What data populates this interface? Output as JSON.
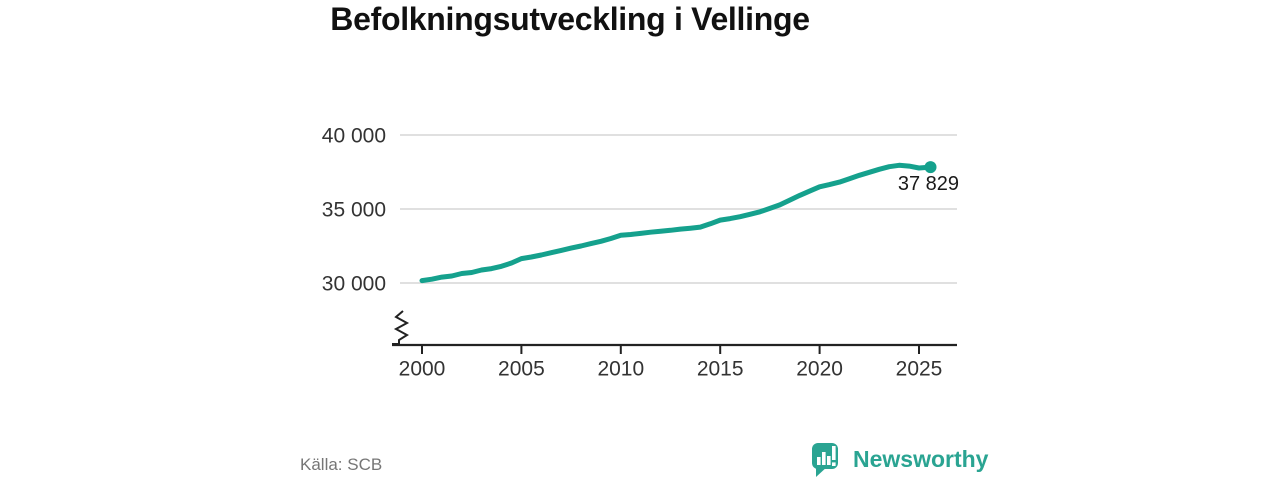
{
  "title": "Befolkningsutveckling i Vellinge",
  "source": "Källa: SCB",
  "branding": {
    "name": "Newsworthy"
  },
  "colors": {
    "accent": "#15a18d",
    "brand": "#2aa492",
    "grid": "#dcdcdc",
    "axis": "#222222",
    "tick_text": "#333333",
    "title_text": "#111111",
    "source_text": "#767676",
    "end_label_text": "#1a1a1a"
  },
  "chart_data": {
    "type": "line",
    "title": "Befolkningsutveckling i Vellinge",
    "xlabel": "",
    "ylabel": "",
    "legend": "none",
    "grid": "horizontal",
    "y_axis_break": true,
    "ylim_shown": [
      30000,
      40000
    ],
    "xlim": [
      2000,
      2027
    ],
    "xticks": [
      "2000",
      "2005",
      "2010",
      "2015",
      "2020",
      "2025"
    ],
    "yticks": [
      {
        "value": 40000,
        "label": "40 000"
      },
      {
        "value": 35000,
        "label": "35 000"
      },
      {
        "value": 30000,
        "label": "30 000"
      }
    ],
    "end_label": "37 829",
    "end_value": 37829,
    "series": [
      {
        "name": "Befolkning",
        "x": [
          2000,
          2000.5,
          2001,
          2001.5,
          2002,
          2002.5,
          2003,
          2003.5,
          2004,
          2004.5,
          2005,
          2005.5,
          2006,
          2006.5,
          2007,
          2007.5,
          2008,
          2008.5,
          2009,
          2009.5,
          2010,
          2010.5,
          2011,
          2011.5,
          2012,
          2012.5,
          2013,
          2013.5,
          2014,
          2014.5,
          2015,
          2015.5,
          2016,
          2016.5,
          2017,
          2017.5,
          2018,
          2018.5,
          2019,
          2019.5,
          2020,
          2020.5,
          2021,
          2021.5,
          2022,
          2022.5,
          2023,
          2023.5,
          2024,
          2024.5,
          2025,
          2025.58
        ],
        "values": [
          30160,
          30260,
          30400,
          30470,
          30640,
          30710,
          30880,
          30970,
          31130,
          31350,
          31650,
          31760,
          31890,
          32050,
          32200,
          32360,
          32500,
          32660,
          32820,
          33010,
          33230,
          33280,
          33350,
          33430,
          33500,
          33560,
          33640,
          33700,
          33780,
          34000,
          34250,
          34350,
          34480,
          34640,
          34810,
          35040,
          35280,
          35600,
          35920,
          36210,
          36500,
          36650,
          36820,
          37050,
          37280,
          37480,
          37680,
          37860,
          37950,
          37900,
          37770,
          37829
        ]
      }
    ]
  }
}
